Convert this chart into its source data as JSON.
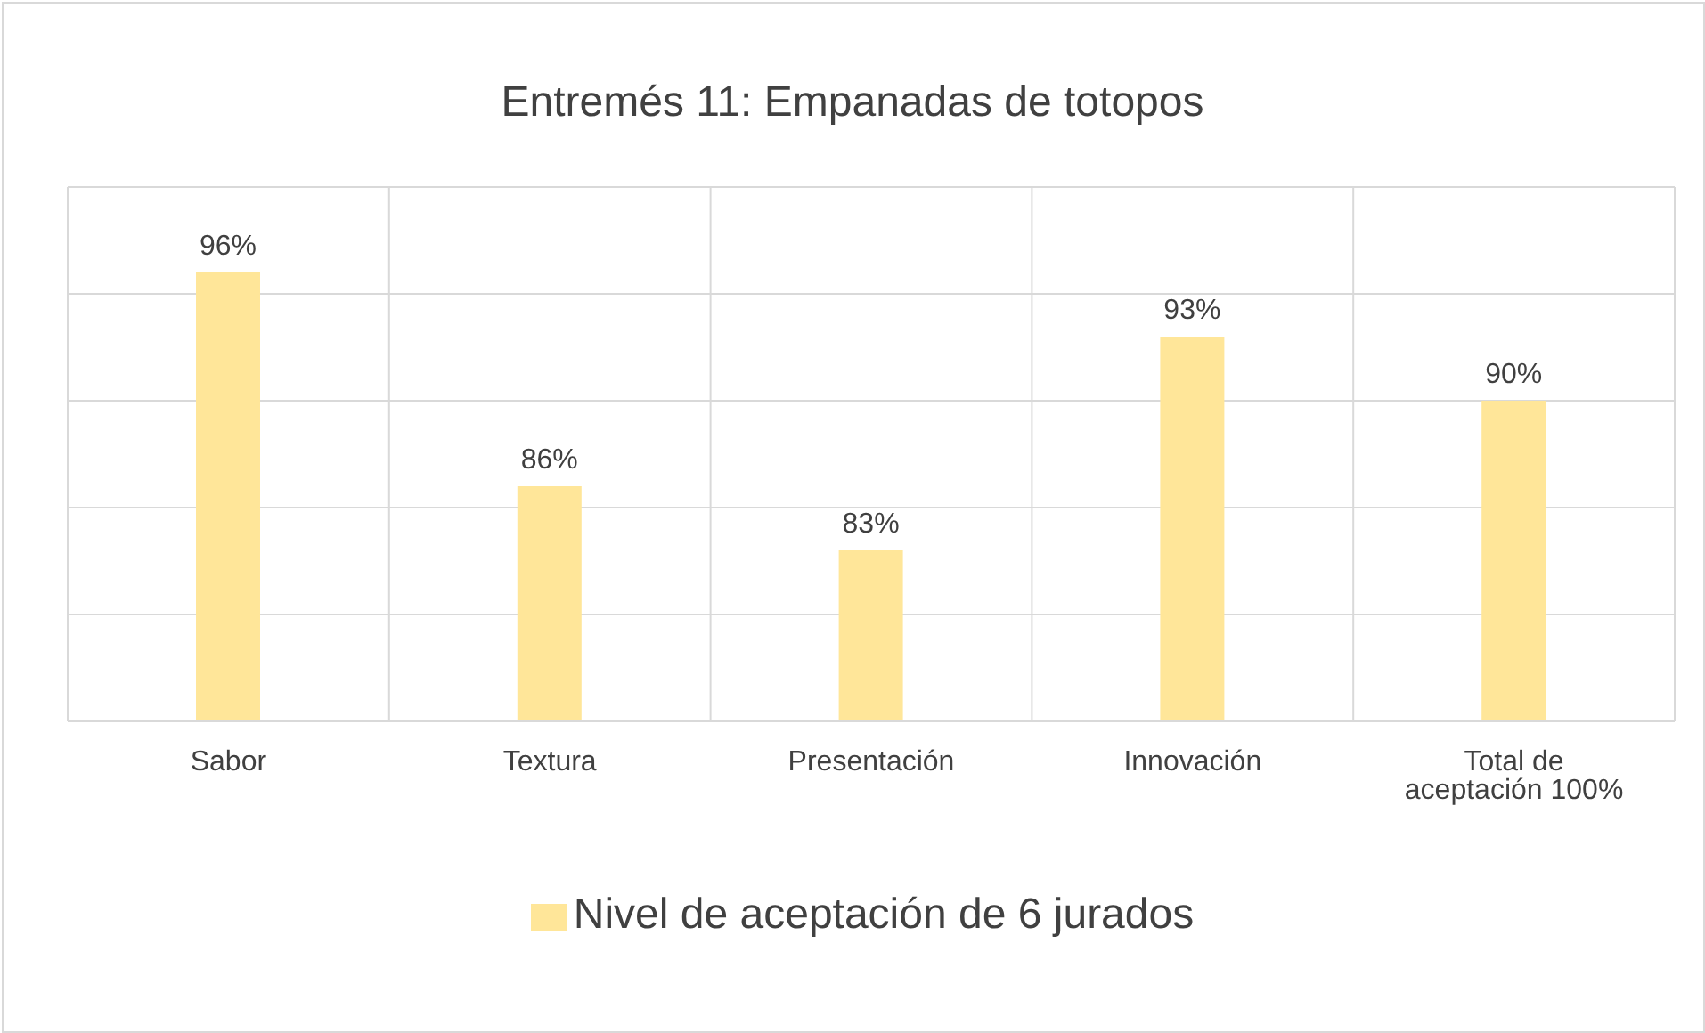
{
  "chart_data": {
    "type": "bar",
    "title": "Entremés 11: Empanadas de totopos",
    "categories": [
      "Sabor",
      "Textura",
      "Presentación",
      "Innovación",
      "Total de aceptación 100%"
    ],
    "series": [
      {
        "name": "Nivel de aceptación de 6 jurados",
        "color": "#ffe699",
        "values": [
          96,
          86,
          83,
          93,
          90
        ],
        "value_labels": [
          "96%",
          "86%",
          "83%",
          "93%",
          "90%"
        ]
      }
    ],
    "ylim": [
      75,
      100
    ],
    "yticks": [
      {
        "value": 75,
        "label": null
      },
      {
        "value": 80,
        "label": null
      },
      {
        "value": 85,
        "label": null
      },
      {
        "value": 90,
        "label": null
      },
      {
        "value": 95,
        "label": null
      },
      {
        "value": 100,
        "label": null
      }
    ],
    "tick_labels": "x",
    "grid": true,
    "legend": "bottom"
  }
}
